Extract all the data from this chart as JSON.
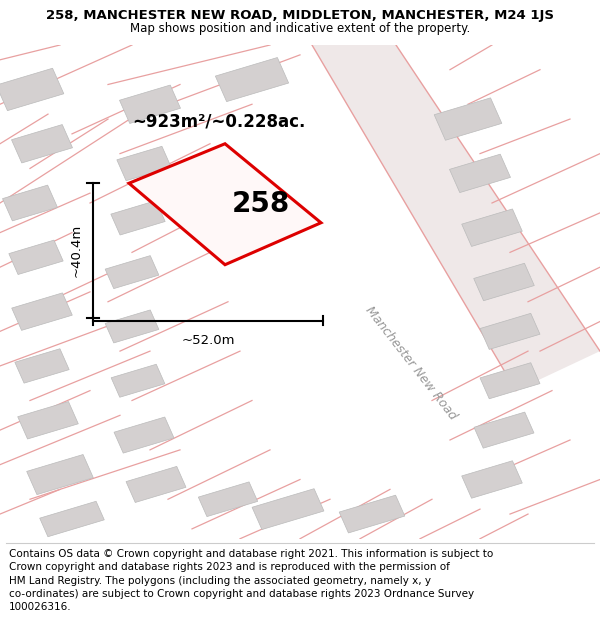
{
  "title": "258, MANCHESTER NEW ROAD, MIDDLETON, MANCHESTER, M24 1JS",
  "subtitle": "Map shows position and indicative extent of the property.",
  "footer": "Contains OS data © Crown copyright and database right 2021. This information is subject to\nCrown copyright and database rights 2023 and is reproduced with the permission of\nHM Land Registry. The polygons (including the associated geometry, namely x, y\nco-ordinates) are subject to Crown copyright and database rights 2023 Ordnance Survey\n100026316.",
  "area_label": "~923m²/~0.228ac.",
  "width_label": "~52.0m",
  "height_label": "~40.4m",
  "plot_number": "258",
  "map_bg_color": "#f7f0f0",
  "plot_color": "#cc0000",
  "road_color": "#e8a0a0",
  "building_color": "#d4d0d0",
  "title_fontsize": 9.5,
  "subtitle_fontsize": 8.5,
  "footer_fontsize": 7.5
}
